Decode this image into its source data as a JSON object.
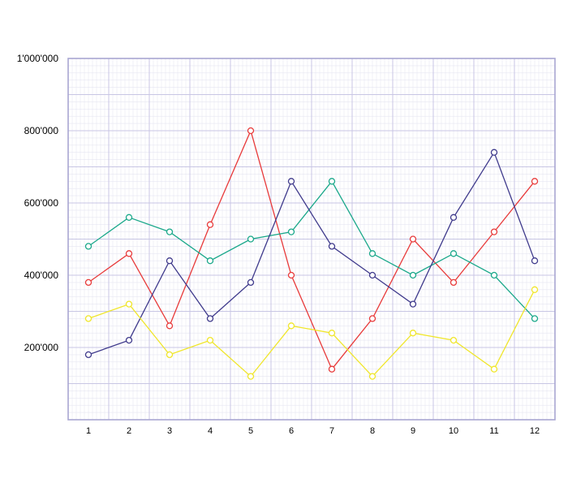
{
  "chart_data": {
    "type": "line",
    "title": "",
    "xlabel": "",
    "ylabel": "",
    "categories": [
      "1",
      "2",
      "3",
      "4",
      "5",
      "6",
      "7",
      "8",
      "9",
      "10",
      "11",
      "12"
    ],
    "ylim": [
      0,
      1000000
    ],
    "y_ticks": [
      200000,
      400000,
      600000,
      800000,
      1000000
    ],
    "y_tick_labels": [
      "200'000",
      "400'000",
      "600'000",
      "800'000",
      "1'000'000"
    ],
    "grid": true,
    "legend": "none",
    "series": [
      {
        "color": "#e83a3a",
        "values": [
          380000,
          460000,
          260000,
          540000,
          800000,
          400000,
          140000,
          280000,
          500000,
          380000,
          520000,
          660000
        ]
      },
      {
        "color": "#1aa88a",
        "values": [
          480000,
          560000,
          520000,
          440000,
          500000,
          520000,
          660000,
          460000,
          400000,
          460000,
          400000,
          280000
        ]
      },
      {
        "color": "#3f3a8c",
        "values": [
          180000,
          220000,
          440000,
          280000,
          380000,
          660000,
          480000,
          400000,
          320000,
          560000,
          740000,
          440000
        ]
      },
      {
        "color": "#f0e62a",
        "values": [
          280000,
          320000,
          180000,
          220000,
          120000,
          260000,
          240000,
          120000,
          240000,
          220000,
          140000,
          360000
        ]
      }
    ],
    "colors": {
      "grid_major": "#c8c6e4",
      "grid_minor": "#e6e6f2",
      "axis": "#a9a6d2"
    }
  }
}
